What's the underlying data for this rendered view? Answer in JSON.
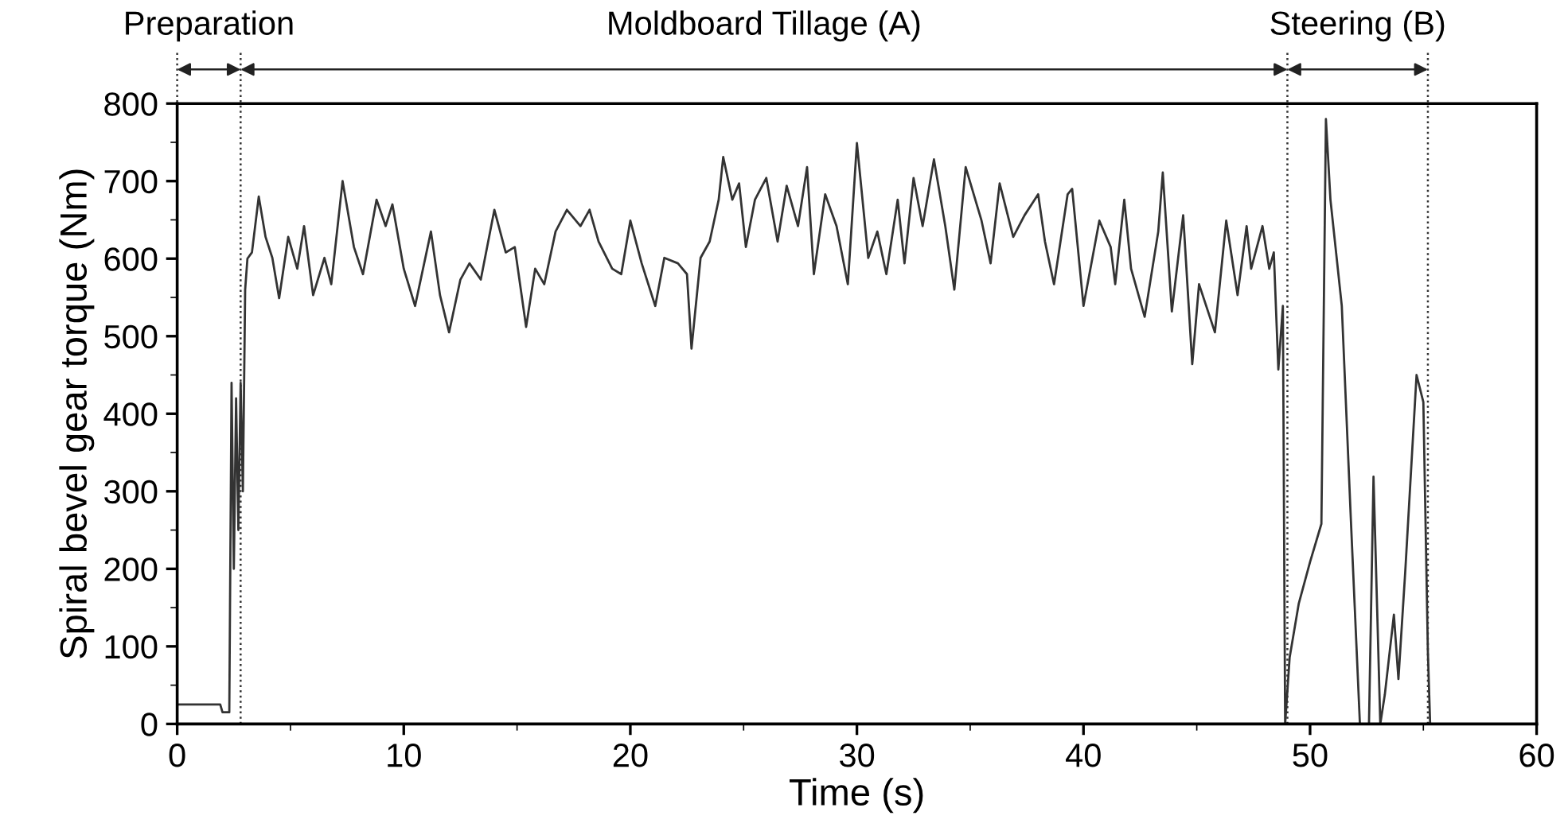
{
  "chart_data": {
    "type": "line",
    "xlabel": "Time (s)",
    "ylabel": "Spiral bevel gear torque (Nm)",
    "xlim": [
      0,
      60
    ],
    "xticks": [
      0,
      10,
      20,
      30,
      40,
      50,
      60
    ],
    "ylim": [
      0,
      800
    ],
    "yticks": [
      0,
      100,
      200,
      300,
      400,
      500,
      600,
      700,
      800
    ],
    "grid": false,
    "marker": "none",
    "line_style": "solid",
    "series": [
      {
        "color": "#333333",
        "x": [
          0,
          1.9,
          2.0,
          2.3,
          2.4,
          2.5,
          2.6,
          2.7,
          2.8,
          2.9,
          3.0,
          3.1,
          3.3,
          3.6,
          3.9,
          4.2,
          4.5,
          4.9,
          5.3,
          5.6,
          6.0,
          6.5,
          6.8,
          7.3,
          7.8,
          8.2,
          8.8,
          9.2,
          9.5,
          10.0,
          10.5,
          11.2,
          11.6,
          12.0,
          12.5,
          12.9,
          13.4,
          14.0,
          14.5,
          14.9,
          15.4,
          15.8,
          16.2,
          16.7,
          17.2,
          17.8,
          18.2,
          18.6,
          19.2,
          19.6,
          20.0,
          20.5,
          21.1,
          21.5,
          22.1,
          22.5,
          22.7,
          23.1,
          23.5,
          23.9,
          24.1,
          24.5,
          24.8,
          25.1,
          25.5,
          26.0,
          26.5,
          26.9,
          27.4,
          27.8,
          28.1,
          28.6,
          29.1,
          29.6,
          30.0,
          30.5,
          30.9,
          31.3,
          31.8,
          32.1,
          32.5,
          32.9,
          33.4,
          33.9,
          34.3,
          34.8,
          35.5,
          35.9,
          36.3,
          36.9,
          37.4,
          38.0,
          38.3,
          38.7,
          39.3,
          39.5,
          40.0,
          40.7,
          41.2,
          41.4,
          41.8,
          42.1,
          42.7,
          43.3,
          43.5,
          43.9,
          44.4,
          44.8,
          45.1,
          45.8,
          46.3,
          46.8,
          47.2,
          47.4,
          47.9,
          48.2,
          48.4,
          48.6,
          48.8,
          48.9,
          49.1,
          49.5,
          50.0,
          50.5,
          50.7,
          50.9,
          51.4,
          51.8,
          52.2,
          52.6,
          52.8,
          53.1,
          53.3,
          53.7,
          53.9,
          54.2,
          54.7,
          55.0,
          55.2,
          55.3
        ],
        "values": [
          25,
          25,
          15,
          15,
          440,
          200,
          420,
          250,
          440,
          300,
          560,
          600,
          608,
          680,
          628,
          601,
          549,
          628,
          587,
          642,
          553,
          601,
          567,
          700,
          615,
          580,
          676,
          642,
          670,
          587,
          539,
          635,
          553,
          505,
          573,
          594,
          573,
          663,
          608,
          615,
          512,
          587,
          567,
          635,
          663,
          642,
          663,
          622,
          587,
          580,
          649,
          594,
          539,
          601,
          594,
          580,
          484,
          601,
          622,
          676,
          731,
          676,
          697,
          615,
          676,
          704,
          622,
          694,
          642,
          718,
          580,
          683,
          642,
          567,
          749,
          601,
          635,
          580,
          676,
          594,
          704,
          642,
          728,
          642,
          560,
          718,
          649,
          594,
          697,
          628,
          656,
          683,
          622,
          567,
          683,
          690,
          539,
          649,
          615,
          567,
          676,
          587,
          525,
          635,
          711,
          532,
          656,
          464,
          567,
          505,
          649,
          553,
          642,
          587,
          642,
          587,
          608,
          457,
          539,
          0,
          86,
          155,
          209,
          258,
          780,
          676,
          539,
          264,
          0,
          0,
          319,
          0,
          38,
          141,
          58,
          196,
          450,
          415,
          93,
          0
        ]
      }
    ],
    "ref_lines": [
      {
        "axis": "x",
        "value": 0,
        "line_style": "dotted"
      },
      {
        "axis": "x",
        "value": 2.8,
        "line_style": "dotted"
      },
      {
        "axis": "x",
        "value": 49,
        "line_style": "dotted"
      },
      {
        "axis": "x",
        "value": 55.2,
        "line_style": "dotted"
      }
    ],
    "annotations": [
      "Preparation",
      "Moldboard Tillage (A)",
      "Steering (B)"
    ]
  }
}
